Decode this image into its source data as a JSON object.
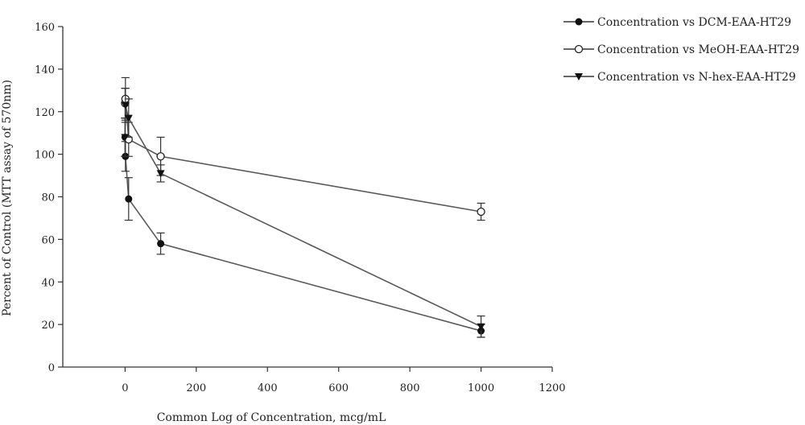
{
  "chart_data": {
    "type": "line",
    "xlabel": "Common Log of Concentration, mcg/mL",
    "ylabel": "Percent of Control (MTT assay of 570nm)",
    "xlim": [
      -175,
      1200
    ],
    "ylim": [
      0,
      160
    ],
    "xticks": [
      0,
      200,
      400,
      600,
      800,
      1000,
      1200
    ],
    "yticks": [
      0,
      20,
      40,
      60,
      80,
      100,
      120,
      140,
      160
    ],
    "grid": false,
    "legend_position": "top-right",
    "series": [
      {
        "name": "Concentration vs DCM-EAA-HT29",
        "marker": "filled-circle",
        "color": "#5a5a5a",
        "x": [
          0,
          1,
          10,
          100,
          1000
        ],
        "y": [
          108,
          99,
          79,
          58,
          17
        ],
        "err": [
          9,
          7,
          10,
          5,
          3
        ]
      },
      {
        "name": "Concentration vs MeOH-EAA-HT29",
        "marker": "open-circle",
        "color": "#5a5a5a",
        "x": [
          0,
          1,
          10,
          100,
          1000
        ],
        "y": [
          124,
          126,
          107,
          99,
          73
        ],
        "err": [
          7,
          10,
          8,
          9,
          4
        ]
      },
      {
        "name": "Concentration vs N-hex-EAA-HT29",
        "marker": "filled-triangle-down",
        "color": "#5a5a5a",
        "x": [
          0,
          1,
          10,
          100,
          1000
        ],
        "y": [
          108,
          123,
          117,
          91,
          19
        ],
        "err": [
          9,
          8,
          9,
          4,
          5
        ]
      }
    ]
  }
}
